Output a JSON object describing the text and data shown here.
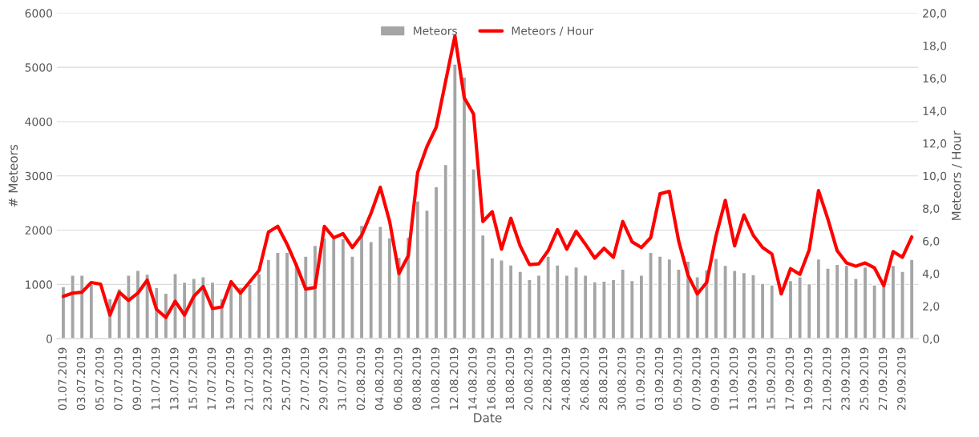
{
  "chart_data": {
    "type": "bar",
    "xlabel": "Date",
    "ylabel": "# Meteors",
    "y2label": "Meteors / Hour",
    "categories": [
      "01.07.2019",
      null,
      "03.07.2019",
      null,
      "05.07.2019",
      null,
      "07.07.2019",
      null,
      "09.07.2019",
      null,
      "11.07.2019",
      null,
      "13.07.2019",
      null,
      "15.07.2019",
      null,
      "17.07.2019",
      null,
      "19.07.2019",
      null,
      "21.07.2019",
      null,
      "23.07.2019",
      null,
      "25.07.2019",
      null,
      "27.07.2019",
      null,
      "29.07.2019",
      null,
      "31.07.2019",
      null,
      "02.08.2019",
      null,
      "04.08.2019",
      null,
      "06.08.2019",
      null,
      "08.08.2019",
      null,
      "10.08.2019",
      null,
      "12.08.2019",
      null,
      "14.08.2019",
      null,
      "16.08.2019",
      null,
      "18.08.2019",
      null,
      "20.08.2019",
      null,
      "22.08.2019",
      null,
      "24.08.2019",
      null,
      "26.08.2019",
      null,
      "28.08.2019",
      null,
      "30.08.2019",
      null,
      "01.09.2019",
      null,
      "03.09.2019",
      null,
      "05.09.2019",
      null,
      "07.09.2019",
      null,
      "09.09.2019",
      null,
      "11.09.2019",
      null,
      "13.09.2019",
      null,
      "15.09.2019",
      null,
      "17.09.2019",
      null,
      "19.09.2019",
      null,
      "21.09.2019",
      null,
      "23.09.2019",
      null,
      "25.09.2019",
      null,
      "27.09.2019",
      null,
      "29.09.2019",
      null
    ],
    "series": [
      {
        "name": "Meteors",
        "color": "#a5a5a5",
        "values": [
          960,
          1170,
          1170,
          1000,
          null,
          740,
          920,
          1170,
          1260,
          1190,
          940,
          840,
          1200,
          1040,
          1110,
          1140,
          1040,
          740,
          1000,
          950,
          1000,
          1200,
          1460,
          1590,
          1590,
          1400,
          1520,
          1720,
          1860,
          1860,
          1840,
          1520,
          2090,
          1790,
          2070,
          1860,
          1500,
          1870,
          2540,
          2370,
          2800,
          3210,
          5060,
          4820,
          3130,
          1910,
          1490,
          1450,
          1360,
          1240,
          1090,
          1170,
          1520,
          1360,
          1170,
          1320,
          1170,
          1050,
          1060,
          1090,
          1280,
          1070,
          1170,
          1590,
          1520,
          1470,
          1280,
          1430,
          1140,
          1270,
          1480,
          1350,
          1260,
          1220,
          1180,
          1020,
          990,
          null,
          1070,
          1140,
          1010,
          1470,
          1300,
          1370,
          1350,
          1110,
          1320,
          990,
          960,
          1350,
          1240,
          1460
        ]
      },
      {
        "name": "Meteors / Hour",
        "type": "line",
        "axis": "y2",
        "color": "#ff0000",
        "values": [
          2.6,
          2.8,
          2.85,
          3.45,
          3.35,
          1.45,
          2.85,
          2.35,
          2.8,
          3.6,
          1.8,
          1.3,
          2.3,
          1.45,
          2.6,
          3.2,
          1.85,
          1.95,
          3.5,
          2.8,
          3.5,
          4.2,
          6.55,
          6.9,
          5.8,
          4.5,
          3.05,
          3.15,
          6.9,
          6.2,
          6.45,
          5.6,
          6.35,
          7.7,
          9.3,
          7.2,
          4.0,
          5.1,
          10.2,
          11.8,
          13.0,
          15.8,
          18.6,
          14.8,
          13.8,
          7.2,
          7.8,
          5.5,
          7.4,
          5.7,
          4.55,
          4.6,
          5.4,
          6.7,
          5.5,
          6.6,
          5.8,
          4.95,
          5.55,
          5.0,
          7.2,
          5.95,
          5.6,
          6.2,
          8.9,
          9.05,
          6.0,
          3.9,
          2.75,
          3.45,
          6.3,
          8.5,
          5.7,
          7.6,
          6.35,
          5.6,
          5.2,
          2.75,
          4.3,
          3.95,
          5.45,
          9.1,
          7.35,
          5.4,
          4.65,
          4.45,
          4.65,
          4.35,
          3.25,
          5.35,
          5.0,
          6.25
        ]
      }
    ],
    "ylim": [
      0,
      6000
    ],
    "yticks": [
      0,
      1000,
      2000,
      3000,
      4000,
      5000,
      6000
    ],
    "y2lim": [
      0,
      20
    ],
    "y2ticks": [
      {
        "value": 0,
        "label": "0,0"
      },
      {
        "value": 2,
        "label": "2,0"
      },
      {
        "value": 4,
        "label": "4,0"
      },
      {
        "value": 6,
        "label": "6,0"
      },
      {
        "value": 8,
        "label": "8,0"
      },
      {
        "value": 10,
        "label": "10,0"
      },
      {
        "value": 12,
        "label": "12,0"
      },
      {
        "value": 14,
        "label": "14,0"
      },
      {
        "value": 16,
        "label": "16,0"
      },
      {
        "value": 18,
        "label": "18,0"
      },
      {
        "value": 20,
        "label": "20,0"
      }
    ],
    "grid": "y",
    "legend": "top",
    "line_style": "solid",
    "marker": "none"
  }
}
